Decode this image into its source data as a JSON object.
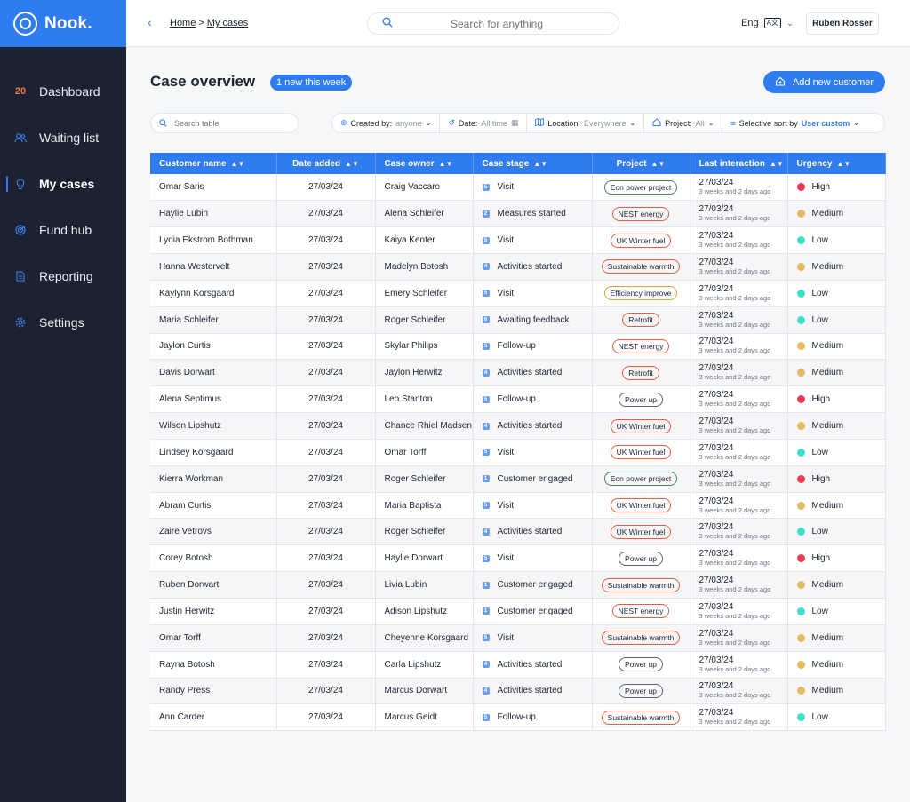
{
  "app": {
    "name": "Nook."
  },
  "sidebar": {
    "items": [
      {
        "label": "Dashboard",
        "badge": "20",
        "icon": "dashboard-icon"
      },
      {
        "label": "Waiting list",
        "icon": "people-icon"
      },
      {
        "label": "My cases",
        "icon": "bulb-icon",
        "active": true
      },
      {
        "label": "Fund hub",
        "icon": "target-icon"
      },
      {
        "label": "Reporting",
        "icon": "document-icon"
      },
      {
        "label": "Settings",
        "icon": "gear-icon"
      }
    ]
  },
  "topbar": {
    "breadcrumb": {
      "home": "Home",
      "sep": ">",
      "current": "My cases"
    },
    "search_placeholder": "Search for anything",
    "language": "Eng",
    "language_glyph": "A文",
    "user": "Ruben Rosser"
  },
  "main": {
    "title": "Case overview",
    "new_badge": "1 new this week",
    "add_button": "Add new customer",
    "search_placeholder": "Search table",
    "filters": [
      {
        "label": "Created by:",
        "value": "anyone",
        "icon": "plus-circle-icon"
      },
      {
        "label": "Date:",
        "value": "All time",
        "icon": "history-icon",
        "extra": "calendar-icon"
      },
      {
        "label": "Location:",
        "value": "Everywhere",
        "icon": "map-icon"
      },
      {
        "label": "Project:",
        "value": "All",
        "icon": "home-icon"
      },
      {
        "label": "Selective sort by",
        "value": "User custom",
        "icon": "sort-icon",
        "highlight": true
      }
    ]
  },
  "table": {
    "columns": [
      "Customer name",
      "Date added",
      "Case owner",
      "Case stage",
      "Project",
      "Last interaction",
      "Urgency"
    ],
    "rows": [
      [
        "Omar Saris",
        "27/03/24",
        "Craig Vaccaro",
        "5",
        "Visit",
        "Eon power project",
        "27/03/24",
        "3 weeks and 2 days ago",
        "High"
      ],
      [
        "Haylie Lubin",
        "27/03/24",
        "Alena Schleifer",
        "2",
        "Measures started",
        "NEST energy",
        "27/03/24",
        "3 weeks and 2 days ago",
        "Medium"
      ],
      [
        "Lydia Ekstrom Bothman",
        "27/03/24",
        "Kaiya Kenter",
        "5",
        "Visit",
        "UK Winter fuel",
        "27/03/24",
        "3 weeks and 2 days ago",
        "Low"
      ],
      [
        "Hanna Westervelt",
        "27/03/24",
        "Madelyn Botosh",
        "4",
        "Activities started",
        "Sustainable warmth",
        "27/03/24",
        "3 weeks and 2 days ago",
        "Medium"
      ],
      [
        "Kaylynn Korsgaard",
        "27/03/24",
        "Emery Schleifer",
        "5",
        "Visit",
        "Efficiency improve",
        "27/03/24",
        "3 weeks and 2 days ago",
        "Low"
      ],
      [
        "Maria Schleifer",
        "27/03/24",
        "Roger Schleifer",
        "6",
        "Awaiting feedback",
        "Retrofit",
        "27/03/24",
        "3 weeks and 2 days ago",
        "Low"
      ],
      [
        "Jaylon Curtis",
        "27/03/24",
        "Skylar Philips",
        "5",
        "Follow-up",
        "NEST energy",
        "27/03/24",
        "3 weeks and 2 days ago",
        "Medium"
      ],
      [
        "Davis Dorwart",
        "27/03/24",
        "Jaylon Herwitz",
        "4",
        "Activities started",
        "Retrofit",
        "27/03/24",
        "3 weeks and 2 days ago",
        "Medium"
      ],
      [
        "Alena Septimus",
        "27/03/24",
        "Leo Stanton",
        "5",
        "Follow-up",
        "Power up",
        "27/03/24",
        "3 weeks and 2 days ago",
        "High"
      ],
      [
        "Wilson Lipshutz",
        "27/03/24",
        "Chance Rhiel Madsen",
        "4",
        "Activities started",
        "UK Winter fuel",
        "27/03/24",
        "3 weeks and 2 days ago",
        "Medium"
      ],
      [
        "Lindsey Korsgaard",
        "27/03/24",
        "Omar Torff",
        "5",
        "Visit",
        "UK Winter fuel",
        "27/03/24",
        "3 weeks and 2 days ago",
        "Low"
      ],
      [
        "Kierra Workman",
        "27/03/24",
        "Roger Schleifer",
        "1",
        "Customer engaged",
        "Eon power project",
        "27/03/24",
        "3 weeks and 2 days ago",
        "High"
      ],
      [
        "Abram Curtis",
        "27/03/24",
        "Maria Baptista",
        "5",
        "Visit",
        "UK Winter fuel",
        "27/03/24",
        "3 weeks and 2 days ago",
        "Medium"
      ],
      [
        "Zaire Vetrovs",
        "27/03/24",
        "Roger Schleifer",
        "4",
        "Activities started",
        "UK Winter fuel",
        "27/03/24",
        "3 weeks and 2 days ago",
        "Low"
      ],
      [
        "Corey Botosh",
        "27/03/24",
        "Haylie Dorwart",
        "5",
        "Visit",
        "Power up",
        "27/03/24",
        "3 weeks and 2 days ago",
        "High"
      ],
      [
        "Ruben Dorwart",
        "27/03/24",
        "Livia Lubin",
        "1",
        "Customer engaged",
        "Sustainable warmth",
        "27/03/24",
        "3 weeks and 2 days ago",
        "Medium"
      ],
      [
        "Justin Herwitz",
        "27/03/24",
        "Adison Lipshutz",
        "1",
        "Customer engaged",
        "NEST energy",
        "27/03/24",
        "3 weeks and 2 days ago",
        "Low"
      ],
      [
        "Omar Torff",
        "27/03/24",
        "Cheyenne Korsgaard",
        "5",
        "Visit",
        "Sustainable warmth",
        "27/03/24",
        "3 weeks and 2 days ago",
        "Medium"
      ],
      [
        "Rayna Botosh",
        "27/03/24",
        "Carla Lipshutz",
        "4",
        "Activities started",
        "Power up",
        "27/03/24",
        "3 weeks and 2 days ago",
        "Medium"
      ],
      [
        "Randy Press",
        "27/03/24",
        "Marcus Dorwart",
        "4",
        "Activities started",
        "Power up",
        "27/03/24",
        "3 weeks and 2 days ago",
        "Medium"
      ],
      [
        "Ann Carder",
        "27/03/24",
        "Marcus Geidt",
        "5",
        "Follow-up",
        "Sustainable warmth",
        "27/03/24",
        "3 weeks and 2 days ago",
        "Low"
      ]
    ]
  },
  "colors": {
    "accent": "#2f7bf0",
    "sidebar": "#1c2231",
    "urgency": {
      "High": "#ef3a55",
      "Medium": "#e3bc62",
      "Low": "#3fe0c9"
    },
    "project": {
      "Eon power project": "#3f8a55",
      "NEST energy": "#e2603f",
      "UK Winter fuel": "#e2603f",
      "Sustainable warmth": "#e2603f",
      "Efficiency improve": "#e0a13f",
      "Retrofit": "#e2603f",
      "Power up": "#5a6677"
    }
  }
}
